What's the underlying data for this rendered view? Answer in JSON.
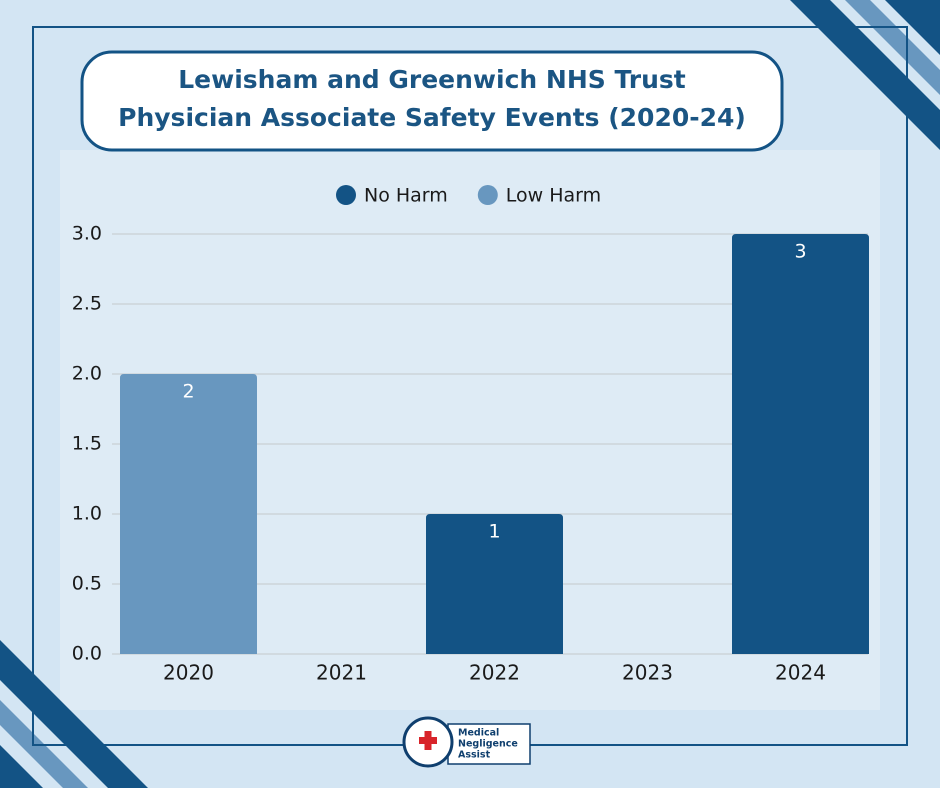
{
  "chart_data": {
    "type": "bar",
    "title": [
      "Lewisham and Greenwich NHS Trust",
      "Physician Associate Safety Events (2020-24)"
    ],
    "categories": [
      "2020",
      "2021",
      "2022",
      "2023",
      "2024"
    ],
    "series": [
      {
        "name": "No Harm",
        "color": "#135385",
        "values": [
          null,
          null,
          1,
          null,
          3
        ]
      },
      {
        "name": "Low Harm",
        "color": "#6897bf",
        "values": [
          2,
          null,
          null,
          null,
          null
        ]
      }
    ],
    "stacked": true,
    "ylim": [
      0,
      3
    ],
    "yticks": [
      {
        "value": 0,
        "label": "0.0"
      },
      0.5,
      {
        "value": 1,
        "label": "1.0"
      },
      1.5,
      {
        "value": 2,
        "label": "2.0"
      },
      2.5,
      {
        "value": 3,
        "label": "3.0"
      }
    ],
    "grid": true,
    "legend": "top",
    "data_labels": true
  },
  "logo": {
    "lines": [
      "Medical",
      "Negligence",
      "Assist"
    ]
  }
}
